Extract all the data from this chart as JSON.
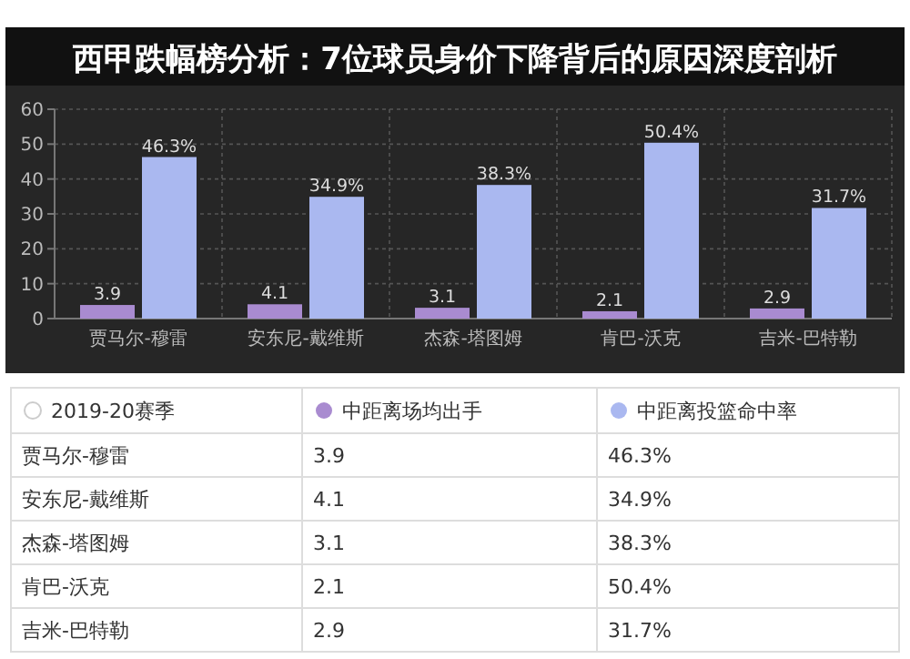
{
  "chart_data": {
    "type": "bar",
    "title": "西甲跌幅榜分析：7位球员身价下降背后的原因深度剖析",
    "categories": [
      "贾马尔-穆雷",
      "安东尼-戴维斯",
      "杰森-塔图姆",
      "肯巴-沃克",
      "吉米-巴特勒"
    ],
    "series": [
      {
        "name": "中距离场均出手",
        "color": "#a98bd0",
        "values": [
          3.9,
          4.1,
          3.1,
          2.1,
          2.9
        ],
        "value_labels": [
          "3.9",
          "4.1",
          "3.1",
          "2.1",
          "2.9"
        ]
      },
      {
        "name": "中距离投篮命中率",
        "color": "#aab8f0",
        "values": [
          46.3,
          34.9,
          38.3,
          50.4,
          31.7
        ],
        "value_labels": [
          "46.3%",
          "34.9%",
          "38.3%",
          "50.4%",
          "31.7%"
        ]
      }
    ],
    "legend_title": "2019-20赛季",
    "ylim": [
      0,
      60
    ],
    "yticks": [
      0,
      10,
      20,
      30,
      40,
      50,
      60
    ],
    "grid": true,
    "legend": "bottom"
  }
}
